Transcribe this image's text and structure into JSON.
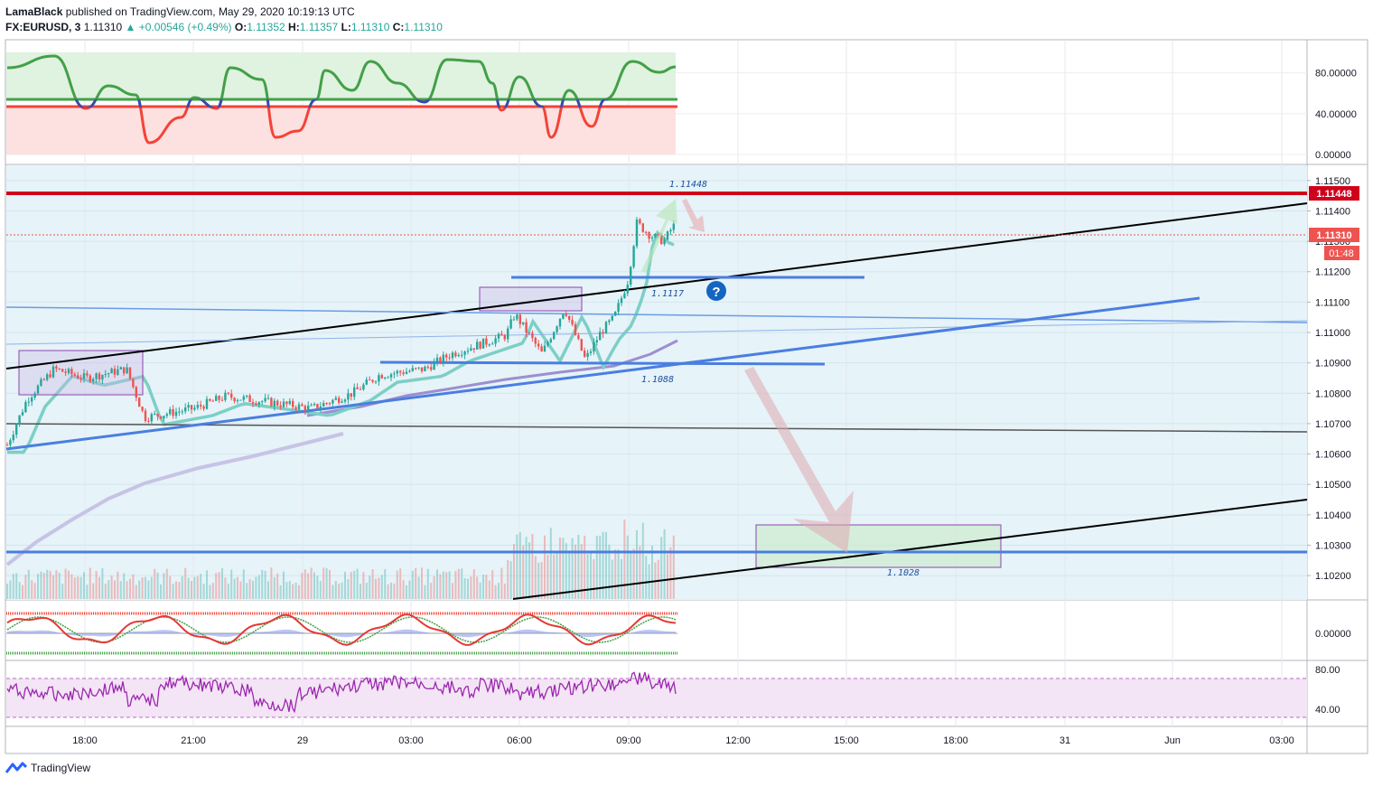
{
  "header": {
    "author": "LamaBlack",
    "published_text": "published on TradingView.com, May 29, 2020 10:19:13 UTC"
  },
  "quote": {
    "symbol": "FX:EURUSD, 3",
    "last": "1.11310",
    "change_arrow": "▲",
    "change": "+0.00546 (+0.49%)",
    "o_label": "O:",
    "o": "1.11352",
    "h_label": "H:",
    "h": "1.11357",
    "l_label": "L:",
    "l": "1.11310",
    "c_label": "C:",
    "c": "1.11310"
  },
  "footer": {
    "logo_text": "TradingView",
    "logo_icon": "tradingview-logo-icon"
  },
  "colors": {
    "up": "#26a69a",
    "down": "#ef5350",
    "support_line": "#4a7ee0",
    "resistance_red": "#d0021b",
    "main_bg": "#e6f3f8",
    "stoch_green": "#43a047",
    "stoch_red": "#f44336",
    "rsi_purple": "#9c27b0"
  },
  "chart_data": [
    {
      "type": "line",
      "panel": "top-oscillator",
      "y_ticks": [
        "80.00000",
        "40.00000",
        "0.00000"
      ],
      "ylim": [
        0,
        100
      ]
    },
    {
      "type": "candlestick",
      "panel": "main-price",
      "symbol": "EURUSD",
      "y_ticks": [
        "1.11500",
        "1.11400",
        "1.11300",
        "1.11200",
        "1.11100",
        "1.11000",
        "1.10900",
        "1.10800",
        "1.10700",
        "1.10600",
        "1.10500",
        "1.10400",
        "1.10300",
        "1.10200"
      ],
      "ylim": [
        1.1012,
        1.1155
      ],
      "price_label": "1.11310",
      "countdown": "01:48",
      "resistance_label": "1.11448",
      "annotations": [
        "1.11448",
        "1.1117",
        "1.1088",
        "1.1028"
      ],
      "question_mark": "?"
    },
    {
      "type": "line",
      "panel": "macd",
      "y_ticks": [
        "0.00000"
      ]
    },
    {
      "type": "line",
      "panel": "rsi",
      "y_ticks": [
        "80.00",
        "40.00"
      ],
      "ylim": [
        30,
        85
      ]
    }
  ],
  "x_axis": {
    "tick_labels": [
      "18:00",
      "21:00",
      "29",
      "03:00",
      "06:00",
      "09:00",
      "12:00",
      "15:00",
      "18:00",
      "31",
      "Jun",
      "03:00"
    ]
  }
}
